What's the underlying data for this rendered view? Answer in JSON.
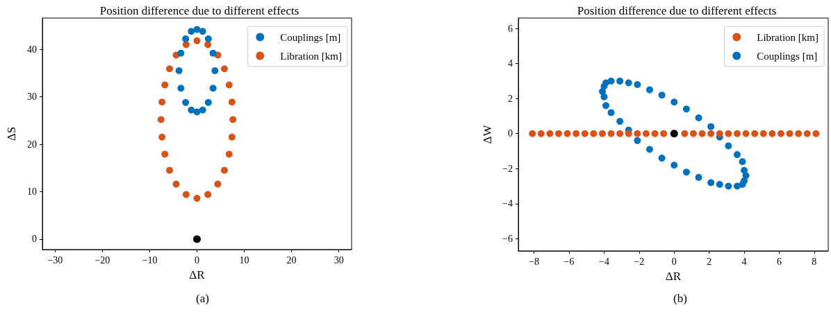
{
  "chart_data": [
    {
      "type": "scatter",
      "title": "Position difference due to different effects",
      "xlabel": "ΔR",
      "ylabel": "ΔS",
      "annotations": [
        "(a)"
      ],
      "xlim": [
        -32.7,
        32.7
      ],
      "xticks": [
        -30,
        -20,
        -10,
        0,
        10,
        20,
        30
      ],
      "ylim": [
        -2.2,
        46.6
      ],
      "yticks": [
        0,
        10,
        20,
        30,
        40
      ],
      "grid": false,
      "legend": "top right",
      "marker": "circle",
      "series": [
        {
          "name": "Couplings [m]",
          "color": "#0072bd",
          "x": [
            3.8,
            3.4,
            2.4,
            1.2,
            0,
            -1.2,
            -2.4,
            -3.4,
            -3.8,
            -3.4,
            -2.4,
            -1.2,
            0,
            1.2,
            2.4,
            3.4
          ],
          "values": [
            35.5,
            39.2,
            42.2,
            43.8,
            44.2,
            43.8,
            42.2,
            39.2,
            35.5,
            31.8,
            28.8,
            27.2,
            26.8,
            27.2,
            28.8,
            31.8
          ]
        },
        {
          "name": "Libration [km]",
          "color": "#d95319",
          "x": [
            7.6,
            7.4,
            6.8,
            5.8,
            4.4,
            2.3,
            0,
            -2.3,
            -4.4,
            -5.8,
            -6.8,
            -7.4,
            -7.6,
            -7.4,
            -6.8,
            -5.8,
            -4.4,
            -2.3,
            0,
            2.3,
            4.4,
            5.8,
            6.8,
            7.4
          ],
          "values": [
            25.2,
            28.9,
            32.5,
            35.9,
            38.8,
            41.0,
            41.8,
            41.0,
            38.8,
            35.9,
            32.5,
            28.9,
            25.2,
            21.5,
            17.9,
            14.5,
            11.6,
            9.4,
            8.6,
            9.4,
            11.6,
            14.5,
            17.9,
            21.5
          ]
        },
        {
          "color": "#000000",
          "x": [
            0
          ],
          "values": [
            0
          ]
        }
      ]
    },
    {
      "type": "scatter",
      "title": "Position difference due to different effects",
      "xlabel": "ΔR",
      "ylabel": "ΔW",
      "annotations": [
        "(b)"
      ],
      "xlim": [
        -8.9,
        8.8
      ],
      "xticks": [
        -8,
        -6,
        -4,
        -2,
        0,
        2,
        4,
        6,
        8
      ],
      "ylim": [
        -6.7,
        6.6
      ],
      "yticks": [
        -6,
        -4,
        -2,
        0,
        2,
        4,
        6
      ],
      "grid": false,
      "legend": "top right",
      "marker": "circle",
      "series": [
        {
          "name": "Libration [km]",
          "color": "#d95319",
          "x": [
            -8.1,
            -7.6,
            -7.1,
            -6.6,
            -6.1,
            -5.6,
            -5.1,
            -4.6,
            -4.1,
            -3.6,
            -3.1,
            -2.6,
            -2.1,
            -1.6,
            -1.1,
            -0.6,
            0.6,
            1.1,
            1.6,
            2.1,
            2.6,
            3.1,
            3.6,
            4.1,
            4.6,
            5.1,
            5.6,
            6.1,
            6.6,
            7.1,
            7.6,
            8.1
          ],
          "values": [
            0,
            0,
            0,
            0,
            0,
            0,
            0,
            0,
            0,
            0,
            0,
            0,
            0,
            0,
            0,
            0,
            0,
            0,
            0,
            0,
            0,
            0,
            0,
            0,
            0,
            0,
            0,
            0,
            0,
            0,
            0,
            0
          ]
        },
        {
          "name": "Couplings [m]",
          "color": "#0072bd",
          "x": [
            4.1,
            4.0,
            3.9,
            3.6,
            3.1,
            2.6,
            2.1,
            1.4,
            0.7,
            0,
            -0.7,
            -1.4,
            -2.1,
            -2.6,
            -3.1,
            -3.6,
            -3.9,
            -4.0,
            -4.1,
            -4.0,
            -3.9,
            -3.6,
            -3.1,
            -2.6,
            -2.1,
            -1.4,
            -0.7,
            0,
            0.7,
            1.4,
            2.1,
            2.6,
            3.1,
            3.6,
            3.9,
            4.0
          ],
          "values": [
            -2.4,
            -2.1,
            -1.6,
            -1.2,
            -0.7,
            -0.2,
            0.4,
            0.9,
            1.4,
            1.8,
            2.2,
            2.5,
            2.8,
            2.9,
            3.0,
            3.0,
            2.9,
            2.7,
            2.4,
            2.1,
            1.6,
            1.2,
            0.7,
            0.2,
            -0.4,
            -0.9,
            -1.4,
            -1.8,
            -2.2,
            -2.5,
            -2.8,
            -2.9,
            -3.0,
            -3.0,
            -2.9,
            -2.7
          ]
        },
        {
          "color": "#000000",
          "x": [
            0
          ],
          "values": [
            0
          ]
        }
      ]
    }
  ]
}
